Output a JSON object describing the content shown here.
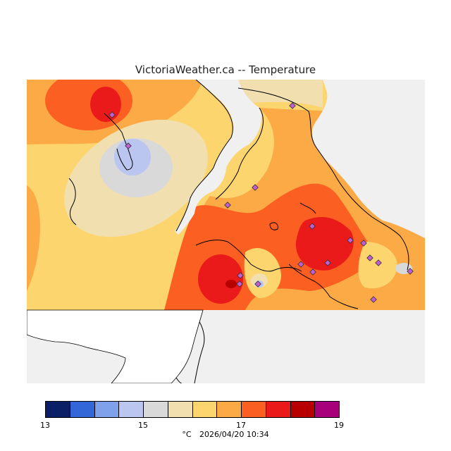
{
  "title": "VictoriaWeather.ca -- Temperature",
  "legend": {
    "ticks": [
      "13",
      "15",
      "17",
      "19"
    ],
    "colors": [
      "#0a1f66",
      "#3366d6",
      "#7fa0ea",
      "#bac6ef",
      "#d9d9d9",
      "#f2dfb0",
      "#fdd56e",
      "#fbaa45",
      "#fc5f22",
      "#ea1a1a",
      "#b80000",
      "#a8007a"
    ]
  },
  "footer": {
    "unit": "°C",
    "timestamp": "2026/04/20 10:34"
  },
  "map": {
    "background_color": "#f0f0f0",
    "stations_count_label": ""
  }
}
